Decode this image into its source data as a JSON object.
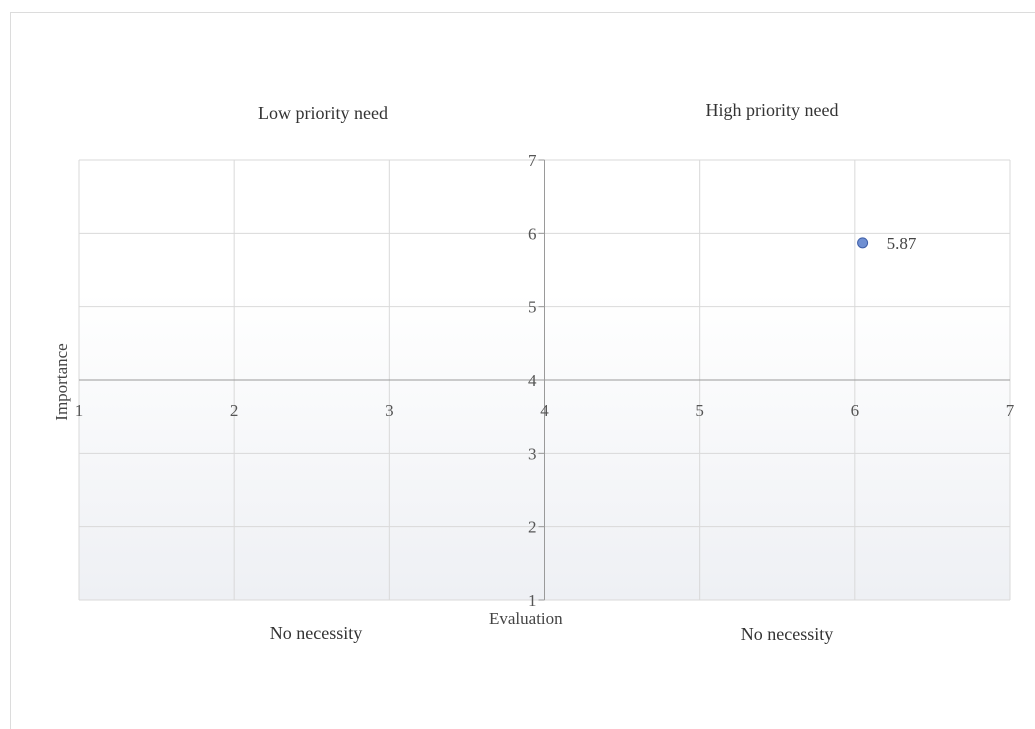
{
  "quadrant_labels": {
    "top_left": "Low priority need",
    "top_right": "High priority need",
    "bottom_left": "No necessity",
    "bottom_right": "No necessity"
  },
  "colors": {
    "point": "#6f8fd2",
    "point_stroke": "#3f5fa8",
    "grid": "#d9d9d9",
    "axis": "#9a9a9a",
    "background_bottom": "#eef0f4"
  },
  "chart_data": {
    "type": "scatter",
    "title": "",
    "xlabel": "Evaluation",
    "ylabel": "Importance",
    "xlim": [
      1,
      7
    ],
    "ylim": [
      1,
      7
    ],
    "x_cross": 4,
    "y_cross": 4,
    "x_ticks": [
      "1",
      "2",
      "3",
      "4",
      "5",
      "6",
      "7"
    ],
    "y_ticks": [
      "1",
      "2",
      "3",
      "4",
      "5",
      "6",
      "7"
    ],
    "grid": true,
    "series": [
      {
        "points": [
          {
            "x": 6.05,
            "y": 5.87,
            "label": "5.87"
          }
        ]
      }
    ]
  }
}
